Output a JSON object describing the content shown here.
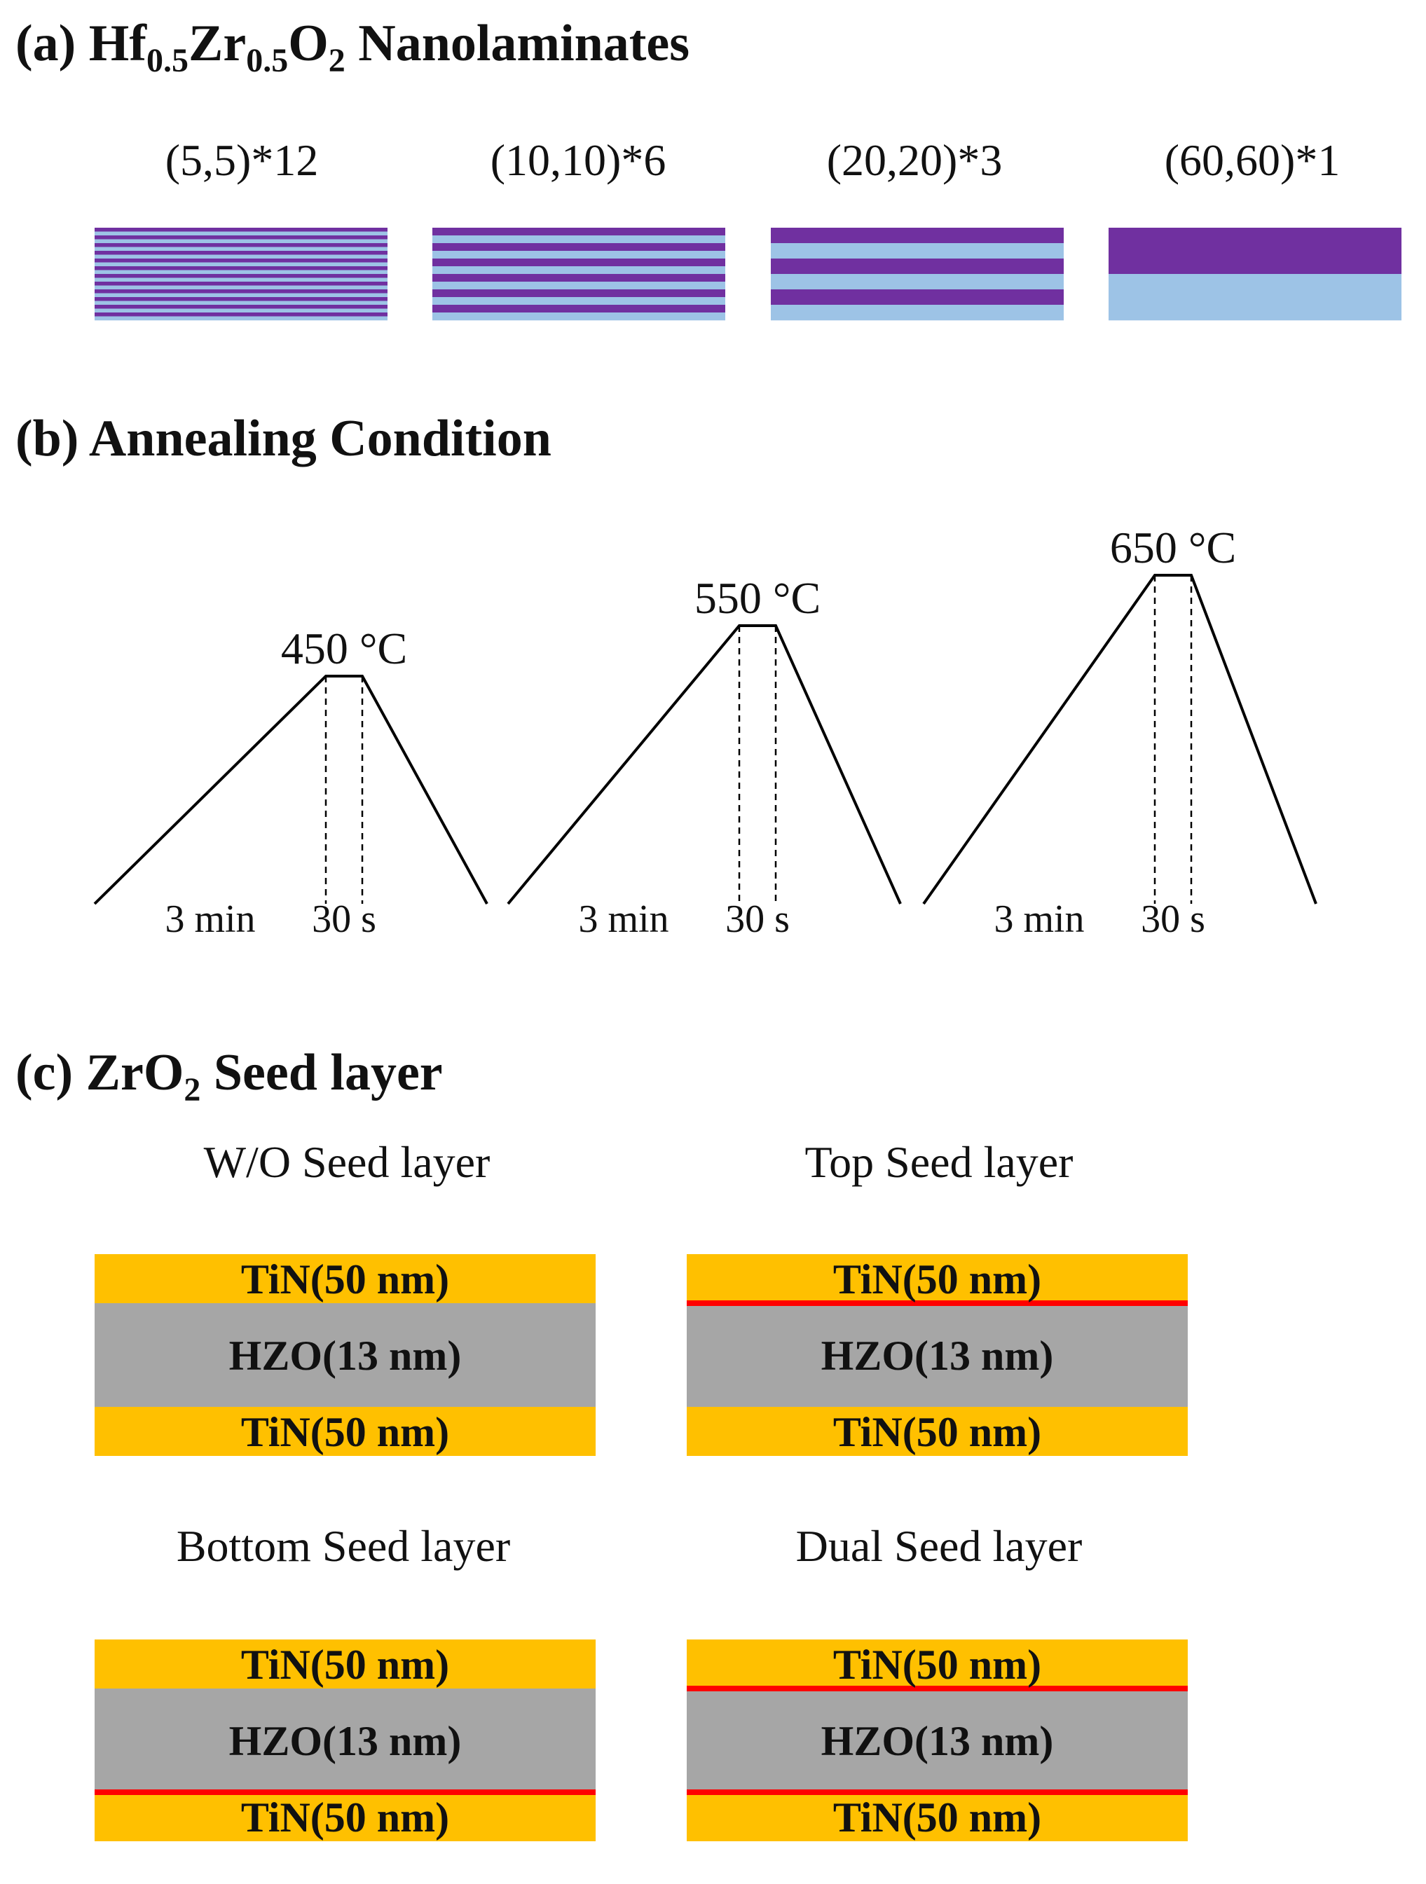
{
  "colors": {
    "purple": "#7030A0",
    "light_blue": "#9DC3E6",
    "tin": "#FFC000",
    "hzo": "#A6A6A6",
    "seed": "#FF0000",
    "line": "#000000"
  },
  "panel_a": {
    "title_prefix": "(a) Hf",
    "sub1": "0.5",
    "mid": "Zr",
    "sub2": "0.5",
    "o": "O",
    "sub3": "2",
    "title_suffix": " Nanolaminates",
    "stacks": [
      {
        "label": "(5,5)*12",
        "pairs": 12
      },
      {
        "label": "(10,10)*6",
        "pairs": 6
      },
      {
        "label": "(20,20)*3",
        "pairs": 3
      },
      {
        "label": "(60,60)*1",
        "pairs": 1
      }
    ]
  },
  "panel_b": {
    "title": "(b) Annealing Condition",
    "profiles": [
      {
        "temp_label": "450 °C",
        "temperature": 450,
        "ramp_label": "3 min",
        "hold_label": "30 s"
      },
      {
        "temp_label": "550 °C",
        "temperature": 550,
        "ramp_label": "3 min",
        "hold_label": "30 s"
      },
      {
        "temp_label": "650 °C",
        "temperature": 650,
        "ramp_label": "3 min",
        "hold_label": "30 s"
      }
    ]
  },
  "panel_c": {
    "title_prefix": "(c) ZrO",
    "sub": "2",
    "title_suffix": " Seed layer",
    "structures": [
      {
        "label": "W/O Seed layer",
        "top": "TiN(50 nm)",
        "middle": "HZO(13 nm)",
        "bottom": "TiN(50 nm)",
        "top_seed": false,
        "bottom_seed": false
      },
      {
        "label": "Top Seed layer",
        "top": "TiN(50 nm)",
        "middle": "HZO(13 nm)",
        "bottom": "TiN(50 nm)",
        "top_seed": true,
        "bottom_seed": false
      },
      {
        "label": "Bottom Seed layer",
        "top": "TiN(50 nm)",
        "middle": "HZO(13 nm)",
        "bottom": "TiN(50 nm)",
        "top_seed": false,
        "bottom_seed": true
      },
      {
        "label": "Dual Seed layer",
        "top": "TiN(50 nm)",
        "middle": "HZO(13 nm)",
        "bottom": "TiN(50 nm)",
        "top_seed": true,
        "bottom_seed": true
      }
    ]
  }
}
